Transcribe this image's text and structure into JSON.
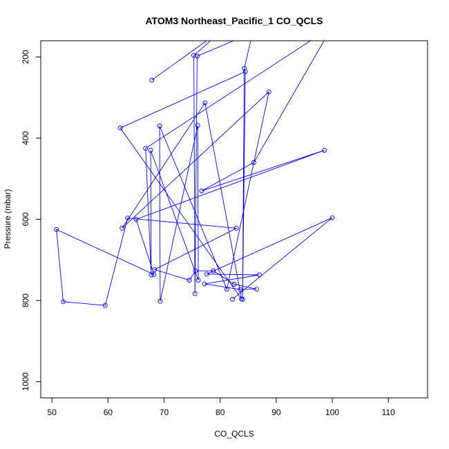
{
  "chart_data": {
    "type": "line",
    "title": "ATOM3 Northeast_Pacific_1 CO_QCLS",
    "xlabel": "CO_QCLS",
    "ylabel": "Pressure (mbar)",
    "xlim": [
      48,
      117
    ],
    "ylim": [
      1040,
      160
    ],
    "y_reversed": true,
    "grid": false,
    "legend": "none",
    "x_ticks": [
      50,
      60,
      70,
      80,
      90,
      100,
      110
    ],
    "y_ticks": [
      200,
      400,
      600,
      800,
      1000
    ],
    "series": [
      {
        "color": "#0000ff",
        "marker": "open-circle",
        "points": [
          {
            "x": 67.8,
            "y": 257
          },
          {
            "x": 81.6,
            "y": 120
          },
          {
            "x": 75.3,
            "y": 196
          },
          {
            "x": 75.5,
            "y": 783
          },
          {
            "x": 75.9,
            "y": 198
          },
          {
            "x": 85.8,
            "y": 140
          },
          {
            "x": 84.3,
            "y": 228
          },
          {
            "x": 84.0,
            "y": 797
          },
          {
            "x": 84.5,
            "y": 236
          },
          {
            "x": 62.2,
            "y": 375
          },
          {
            "x": 83.8,
            "y": 796
          },
          {
            "x": 77.3,
            "y": 313
          },
          {
            "x": 62.5,
            "y": 622
          },
          {
            "x": 88.7,
            "y": 286
          },
          {
            "x": 81.2,
            "y": 772
          },
          {
            "x": 69.2,
            "y": 370
          },
          {
            "x": 69.3,
            "y": 802
          },
          {
            "x": 76.0,
            "y": 369
          },
          {
            "x": 76.1,
            "y": 750
          },
          {
            "x": 67.6,
            "y": 430
          },
          {
            "x": 67.7,
            "y": 737
          },
          {
            "x": 66.7,
            "y": 425
          },
          {
            "x": 100.0,
            "y": 125
          },
          {
            "x": 86.0,
            "y": 460
          },
          {
            "x": 76.7,
            "y": 530
          },
          {
            "x": 98.6,
            "y": 430
          },
          {
            "x": 65.0,
            "y": 600
          },
          {
            "x": 68.2,
            "y": 736
          },
          {
            "x": 50.8,
            "y": 625
          },
          {
            "x": 52.0,
            "y": 803
          },
          {
            "x": 59.5,
            "y": 812
          },
          {
            "x": 63.5,
            "y": 597
          },
          {
            "x": 82.9,
            "y": 622
          },
          {
            "x": 68.3,
            "y": 724
          },
          {
            "x": 74.5,
            "y": 750
          },
          {
            "x": 75.6,
            "y": 727
          },
          {
            "x": 78.8,
            "y": 727
          },
          {
            "x": 82.5,
            "y": 760
          },
          {
            "x": 86.5,
            "y": 772
          },
          {
            "x": 83.6,
            "y": 773
          },
          {
            "x": 77.2,
            "y": 759
          },
          {
            "x": 87.0,
            "y": 737
          },
          {
            "x": 77.6,
            "y": 735
          },
          {
            "x": 100.0,
            "y": 596
          },
          {
            "x": 82.2,
            "y": 797
          }
        ]
      }
    ]
  }
}
